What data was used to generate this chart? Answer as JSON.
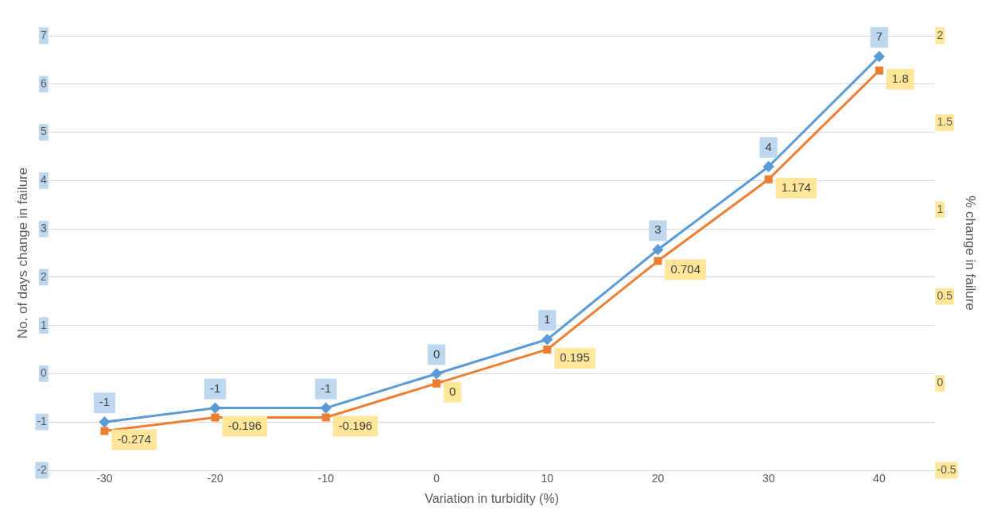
{
  "chart_data": {
    "type": "line",
    "xlabel": "Variation in turbidity (%)",
    "ylabel": "No. of days change in failure",
    "y2label": "% change in failure",
    "categories": [
      "-30",
      "-20",
      "-10",
      "0",
      "10",
      "20",
      "30",
      "40"
    ],
    "series": [
      {
        "color": "#5b9bd5",
        "marker": "diamond",
        "values": [
          -1.0,
          -0.71,
          -0.71,
          0,
          0.71,
          2.57,
          4.29,
          6.57
        ],
        "value_labels": [
          "-1",
          "-1",
          "-1",
          "0",
          "1",
          "3",
          "4",
          "7"
        ]
      },
      {
        "color": "#ed7d31",
        "marker": "square",
        "axis": "y2",
        "values": [
          -0.274,
          -0.196,
          -0.196,
          0,
          0.195,
          0.704,
          1.174,
          1.8
        ],
        "value_labels": [
          "-0.274",
          "-0.196",
          "-0.196",
          "0",
          "0.195",
          "0.704",
          "1.174",
          "1.8"
        ]
      }
    ],
    "ylim": [
      -2,
      7
    ],
    "yticks": [
      -2,
      -1,
      0,
      1,
      2,
      3,
      4,
      5,
      6,
      7
    ],
    "y2lim": [
      -0.5,
      2
    ],
    "y2ticks": [
      -0.5,
      0,
      0.5,
      1,
      1.5,
      2
    ],
    "grid": "y",
    "legend": false
  }
}
